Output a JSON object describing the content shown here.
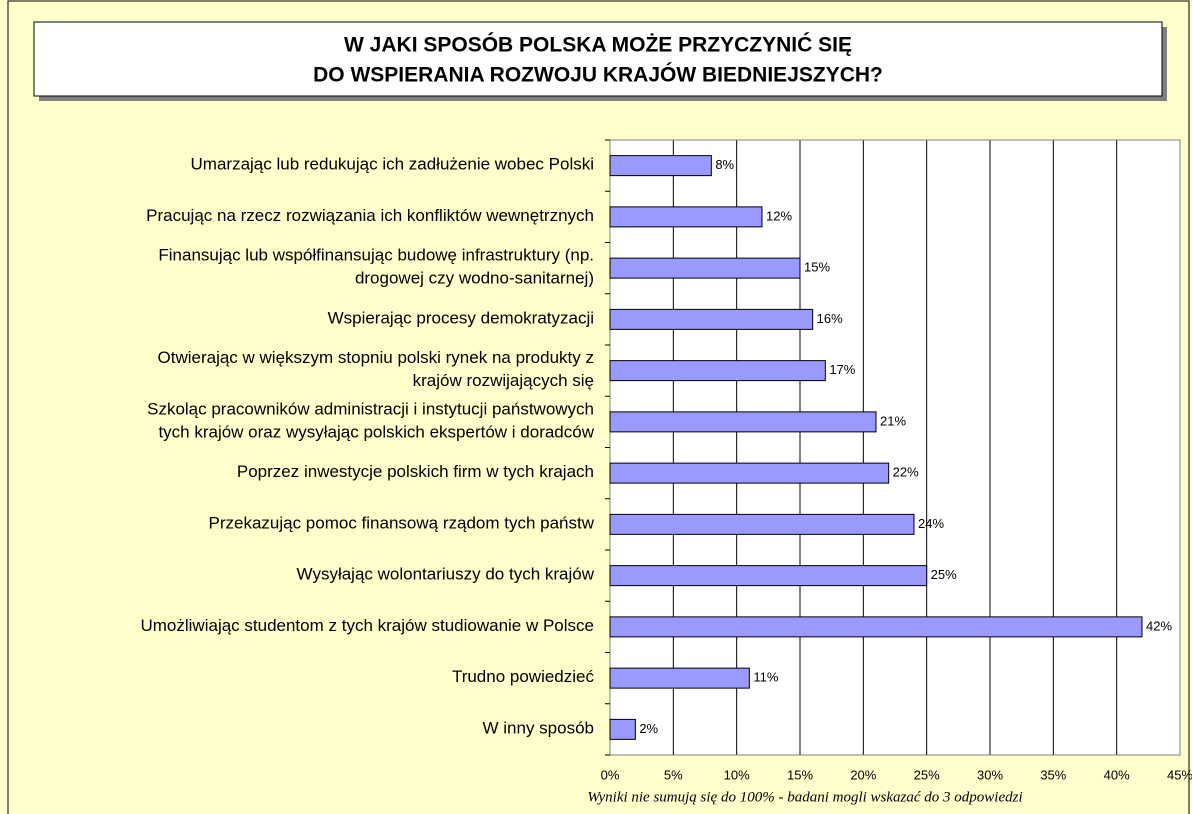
{
  "chart_data": {
    "type": "barh",
    "title": [
      "W JAKI SPOSÓB POLSKA MOŻE PRZYCZYNIĆ SIĘ",
      "DO WSPIERANIA ROZWOJU KRAJÓW BIEDNIEJSZYCH?"
    ],
    "categories": [
      "Umarzając lub redukując ich zadłużenie wobec Polski",
      "Pracując na rzecz rozwiązania ich konfliktów wewnętrznych",
      "Finansując lub współfinansując budowę infrastruktury (np.\ndrogowej czy wodno-sanitarnej)",
      "Wspierając procesy demokratyzacji",
      "Otwierając w większym stopniu polski rynek na produkty z\nkrajów rozwijających się",
      "Szkoląc pracowników administracji i instytucji państwowych\ntych krajów oraz wysyłając polskich ekspertów i doradców",
      "Poprzez inwestycje polskich firm w tych krajach",
      "Przekazując pomoc finansową rządom tych państw",
      "Wysyłając wolontariuszy do tych krajów",
      "Umożliwiając studentom z tych krajów studiowanie w Polsce",
      "Trudno powiedzieć",
      "W inny sposób"
    ],
    "values": [
      8,
      12,
      15,
      16,
      17,
      21,
      22,
      24,
      25,
      42,
      11,
      2
    ],
    "value_labels": [
      "8%",
      "12%",
      "15%",
      "16%",
      "17%",
      "21%",
      "22%",
      "24%",
      "25%",
      "42%",
      "11%",
      "2%"
    ],
    "color": "#9999ff",
    "xlim": [
      0,
      45
    ],
    "xticks": [
      {
        "value": 0,
        "label": "0%"
      },
      {
        "value": 5,
        "label": "5%"
      },
      {
        "value": 10,
        "label": "10%"
      },
      {
        "value": 15,
        "label": "15%"
      },
      {
        "value": 20,
        "label": "20%"
      },
      {
        "value": 25,
        "label": "25%"
      },
      {
        "value": 30,
        "label": "30%"
      },
      {
        "value": 35,
        "label": "35%"
      },
      {
        "value": 40,
        "label": "40%"
      },
      {
        "value": 45,
        "label": "45%"
      }
    ],
    "grid": true,
    "note": "Wyniki nie sumują się do 100% - badani mogli wskazać do 3 odpowiedzi"
  }
}
